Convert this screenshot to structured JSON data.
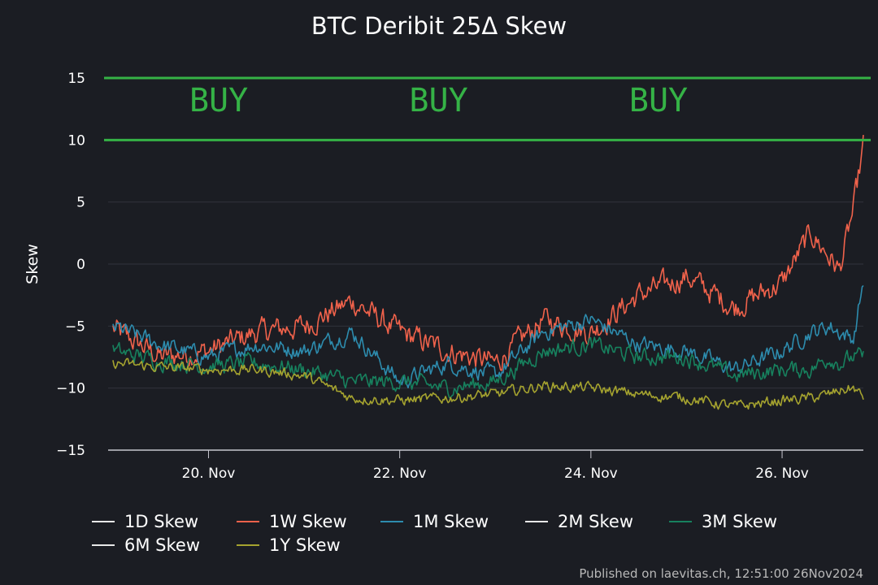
{
  "chart_data": {
    "type": "line",
    "title": "BTC Deribit 25Δ Skew",
    "xlabel": "",
    "ylabel": "Skew",
    "ylim": [
      -15,
      15
    ],
    "yticks": [
      15,
      10,
      5,
      0,
      -5,
      -10,
      -15
    ],
    "xlim": [
      -1.05,
      6.85
    ],
    "xticks": [
      {
        "pos": 0,
        "label": "20. Nov"
      },
      {
        "pos": 2,
        "label": "22. Nov"
      },
      {
        "pos": 4,
        "label": "24. Nov"
      },
      {
        "pos": 6,
        "label": "26. Nov"
      }
    ],
    "hlines": [
      {
        "y": 15,
        "color": "#35b246"
      },
      {
        "y": 10,
        "color": "#35b246"
      }
    ],
    "annotations": [
      {
        "text": "BUY",
        "x": -0.2,
        "y": 12.3
      },
      {
        "text": "BUY",
        "x": 2.1,
        "y": 12.3
      },
      {
        "text": "BUY",
        "x": 4.4,
        "y": 12.3
      }
    ],
    "x_days": [
      -1.0,
      -0.5,
      0.0,
      0.5,
      1.0,
      1.5,
      2.0,
      2.5,
      3.0,
      3.5,
      4.0,
      4.5,
      5.0,
      5.5,
      6.0,
      6.3,
      6.5,
      6.6,
      6.75,
      6.85
    ],
    "series": [
      {
        "name": "1D Skew",
        "color": "#e8e8e8",
        "visible": false,
        "values": []
      },
      {
        "name": "1W Skew",
        "color": "#f0624b",
        "visible": true,
        "values": [
          -5.2,
          -7.5,
          -7.0,
          -5.5,
          -5.0,
          -3.0,
          -5.5,
          -7.0,
          -8.0,
          -4.5,
          -5.5,
          -2.5,
          -1.0,
          -3.5,
          -1.5,
          2.5,
          0.5,
          -0.5,
          4.5,
          9.5
        ]
      },
      {
        "name": "1M Skew",
        "color": "#2d8cae",
        "visible": true,
        "values": [
          -5.0,
          -6.5,
          -7.5,
          -6.5,
          -7.0,
          -5.5,
          -9.5,
          -8.0,
          -9.0,
          -5.5,
          -4.5,
          -6.5,
          -7.0,
          -8.5,
          -7.0,
          -5.5,
          -5.0,
          -5.5,
          -6.0,
          -1.3
        ]
      },
      {
        "name": "2M Skew",
        "color": "#e8e8e8",
        "visible": false,
        "values": []
      },
      {
        "name": "3M Skew",
        "color": "#17815e",
        "visible": true,
        "values": [
          -7.0,
          -7.8,
          -8.2,
          -8.0,
          -8.5,
          -9.5,
          -9.5,
          -10.0,
          -9.5,
          -7.0,
          -6.5,
          -7.5,
          -7.5,
          -9.0,
          -8.5,
          -8.5,
          -7.5,
          -8.0,
          -7.5,
          -7.5
        ]
      },
      {
        "name": "6M Skew",
        "color": "#e8e8e8",
        "visible": false,
        "values": []
      },
      {
        "name": "1Y Skew",
        "color": "#a5a32f",
        "visible": true,
        "values": [
          -8.0,
          -8.3,
          -8.5,
          -8.5,
          -9.0,
          -10.8,
          -11.0,
          -10.8,
          -10.5,
          -9.8,
          -10.0,
          -10.5,
          -10.8,
          -11.5,
          -11.0,
          -10.8,
          -10.5,
          -10.2,
          -10.0,
          -10.8
        ]
      }
    ],
    "legend_position": "bottom",
    "credit": "Published on laevitas.ch, 12:51:00 26Nov2024"
  }
}
